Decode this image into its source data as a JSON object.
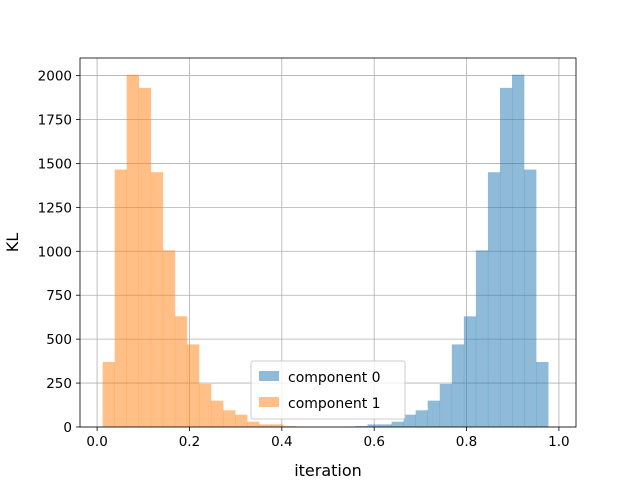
{
  "chart_data": {
    "type": "histogram",
    "xlabel": "iteration",
    "ylabel": "KL",
    "xlim": [
      -0.037,
      1.037
    ],
    "ylim": [
      0,
      2100
    ],
    "xticks": [
      0.0,
      0.2,
      0.4,
      0.6,
      0.8,
      1.0
    ],
    "xtick_labels": [
      "0.0",
      "0.2",
      "0.4",
      "0.6",
      "0.8",
      "1.0"
    ],
    "yticks": [
      0,
      250,
      500,
      750,
      1000,
      1250,
      1500,
      1750,
      2000
    ],
    "ytick_labels": [
      "0",
      "250",
      "500",
      "750",
      "1000",
      "1250",
      "1500",
      "1750",
      "2000"
    ],
    "grid": true,
    "legend_position": "lower center",
    "bin_edges": [
      0.012,
      0.0381,
      0.0641,
      0.0902,
      0.1163,
      0.1424,
      0.1684,
      0.1945,
      0.2206,
      0.2466,
      0.2727,
      0.2988,
      0.3249,
      0.3509,
      0.377,
      0.4031,
      0.4292,
      0.4552,
      0.4813,
      0.5074,
      0.5334,
      0.5595,
      0.5856,
      0.6117,
      0.6377,
      0.6638,
      0.6899,
      0.7159,
      0.742,
      0.7681,
      0.7942,
      0.8202,
      0.8463,
      0.8724,
      0.8984,
      0.9245,
      0.9506,
      0.9767
    ],
    "series": [
      {
        "name": "component 0",
        "color": "#1f77b4",
        "alpha": 0.5,
        "values": [
          0,
          0,
          0,
          0,
          0,
          0,
          0,
          0,
          0,
          0,
          0,
          0,
          0,
          0,
          0,
          0,
          0,
          0,
          0,
          0,
          3,
          5,
          15,
          15,
          30,
          70,
          95,
          150,
          245,
          470,
          630,
          1005,
          1450,
          1930,
          2005,
          1465,
          370
        ]
      },
      {
        "name": "component 1",
        "color": "#ff7f0e",
        "alpha": 0.5,
        "values": [
          370,
          1465,
          2005,
          1930,
          1450,
          1005,
          630,
          470,
          245,
          150,
          95,
          70,
          30,
          15,
          15,
          5,
          3,
          0,
          0,
          0,
          0,
          0,
          0,
          0,
          0,
          0,
          0,
          0,
          0,
          0,
          0,
          0,
          0,
          0,
          0,
          0,
          0
        ]
      }
    ]
  }
}
